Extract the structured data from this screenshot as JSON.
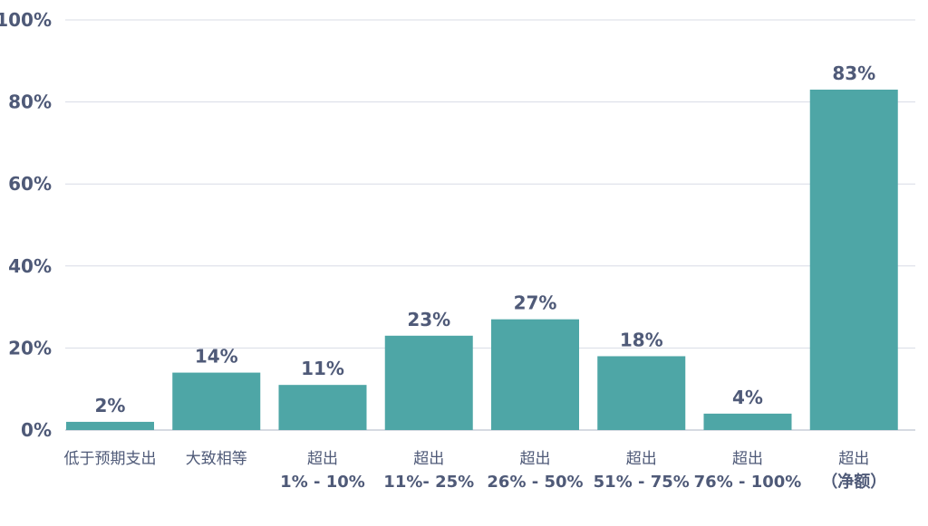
{
  "chart_data": {
    "type": "bar",
    "categories": [
      [
        "低于预期支出"
      ],
      [
        "大致相等"
      ],
      [
        "超出",
        "1% - 10%"
      ],
      [
        "超出",
        "11%- 25%"
      ],
      [
        "超出",
        "26% - 50%"
      ],
      [
        "超出",
        "51% - 75%"
      ],
      [
        "超出",
        "76% - 100%"
      ],
      [
        "超出",
        "（净额）"
      ]
    ],
    "values": [
      2,
      14,
      11,
      23,
      27,
      18,
      4,
      83
    ],
    "value_labels": [
      "2%",
      "14%",
      "11%",
      "23%",
      "27%",
      "18%",
      "4%",
      "83%"
    ],
    "ylim": [
      0,
      100
    ],
    "yticks": [
      0,
      20,
      40,
      60,
      80,
      100
    ],
    "ytick_labels": [
      "0%",
      "20%",
      "40%",
      "60%",
      "80%",
      "100%"
    ],
    "grid": true,
    "colors": {
      "bar": "#4ea6a6",
      "text": "#4f5a78",
      "grid": "#d8dce6"
    }
  }
}
